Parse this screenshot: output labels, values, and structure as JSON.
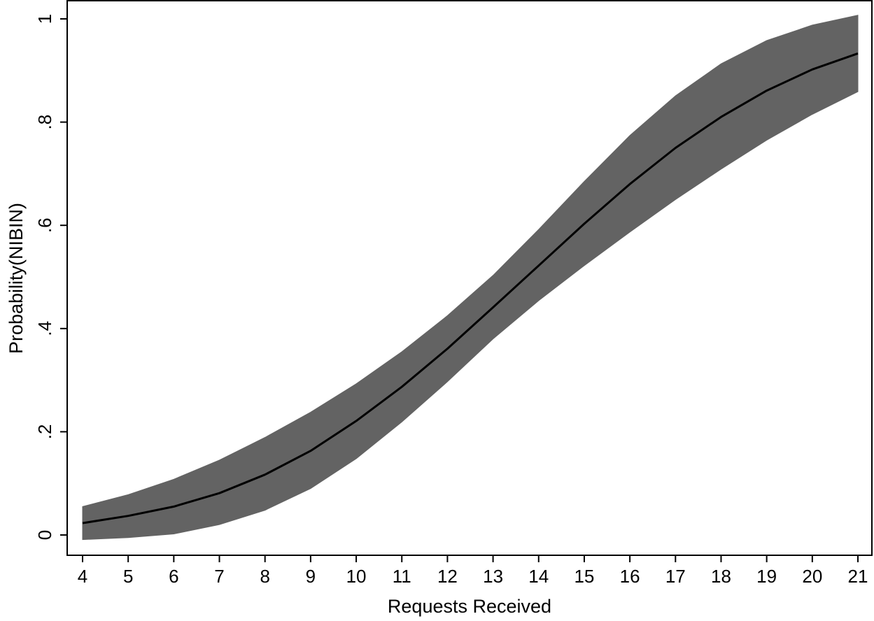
{
  "chart_data": {
    "type": "area",
    "xlabel": "Requests Received",
    "ylabel": "Probability(NIBIN)",
    "xlim": [
      4,
      21
    ],
    "ylim": [
      0,
      1
    ],
    "grid": false,
    "legend": "none",
    "x_ticks": [
      4,
      5,
      6,
      7,
      8,
      9,
      10,
      11,
      12,
      13,
      14,
      15,
      16,
      17,
      18,
      19,
      20,
      21
    ],
    "x_tick_labels": [
      "4",
      "5",
      "6",
      "7",
      "8",
      "9",
      "10",
      "11",
      "12",
      "13",
      "14",
      "15",
      "16",
      "17",
      "18",
      "19",
      "20",
      "21"
    ],
    "y_ticks": [
      0,
      0.2,
      0.4,
      0.6,
      0.8,
      1
    ],
    "y_tick_labels": [
      "0",
      ".2",
      ".4",
      ".6",
      ".8",
      "1"
    ],
    "x": [
      4,
      5,
      6,
      7,
      8,
      9,
      10,
      11,
      12,
      13,
      14,
      15,
      16,
      17,
      18,
      19,
      20,
      21
    ],
    "series": [
      {
        "kind": "line",
        "values": [
          0.023,
          0.037,
          0.055,
          0.081,
          0.117,
          0.163,
          0.221,
          0.287,
          0.361,
          0.441,
          0.522,
          0.603,
          0.68,
          0.75,
          0.81,
          0.861,
          0.902,
          0.933
        ]
      },
      {
        "kind": "band",
        "lower": [
          -0.009,
          -0.005,
          0.002,
          0.02,
          0.048,
          0.09,
          0.148,
          0.219,
          0.297,
          0.38,
          0.454,
          0.522,
          0.587,
          0.65,
          0.709,
          0.765,
          0.815,
          0.859
        ],
        "upper": [
          0.055,
          0.078,
          0.108,
          0.145,
          0.189,
          0.238,
          0.293,
          0.355,
          0.425,
          0.503,
          0.592,
          0.685,
          0.774,
          0.851,
          0.913,
          0.958,
          0.988,
          1.007
        ]
      }
    ],
    "colors": {
      "band": "#636363",
      "line": "#000000",
      "axis": "#000000"
    }
  }
}
